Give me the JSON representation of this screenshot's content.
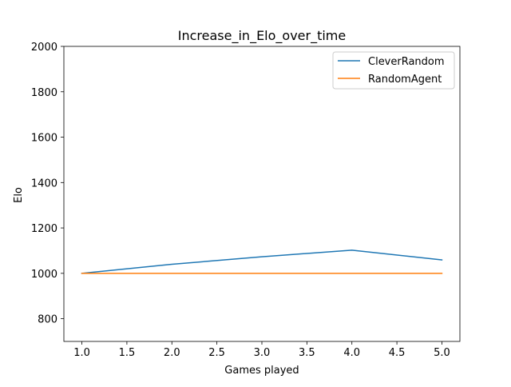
{
  "chart_data": {
    "type": "line",
    "title": "Increase_in_Elo_over_time",
    "xlabel": "Games played",
    "ylabel": "Elo",
    "x": [
      1,
      2,
      3,
      4,
      5
    ],
    "xlim": [
      0.8,
      5.2
    ],
    "ylim": [
      700,
      2000
    ],
    "xticks": [
      1.0,
      1.5,
      2.0,
      2.5,
      3.0,
      3.5,
      4.0,
      4.5,
      5.0
    ],
    "xtick_labels": [
      "1.0",
      "1.5",
      "2.0",
      "2.5",
      "3.0",
      "3.5",
      "4.0",
      "4.5",
      "5.0"
    ],
    "yticks": [
      800,
      1000,
      1200,
      1400,
      1600,
      1800,
      2000
    ],
    "ytick_labels": [
      "800",
      "1000",
      "1200",
      "1400",
      "1600",
      "1800",
      "2000"
    ],
    "grid": false,
    "legend_position": "top-right",
    "series": [
      {
        "name": "CleverRandom",
        "color": "#1f77b4",
        "values": [
          1000,
          1040,
          1073,
          1102,
          1059
        ]
      },
      {
        "name": "RandomAgent",
        "color": "#ff7f0e",
        "values": [
          1000,
          1000,
          1000,
          1000,
          1000
        ]
      }
    ]
  }
}
